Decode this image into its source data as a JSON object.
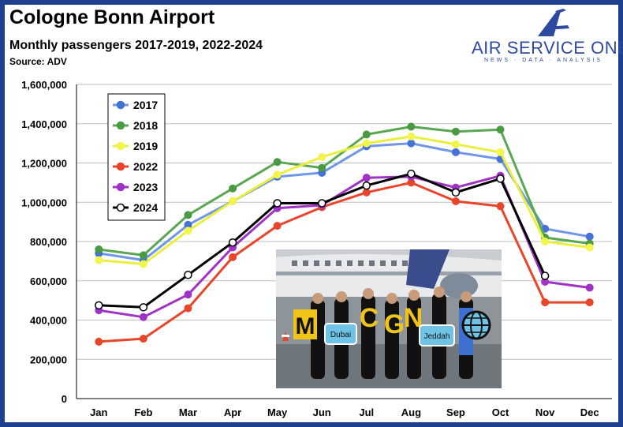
{
  "header": {
    "title": "Cologne Bonn Airport",
    "subtitle": "Monthly passengers 2017-2019, 2022-2024",
    "source": "Source: ADV"
  },
  "logo": {
    "name": "AIR SERVICE ONE",
    "tagline": "NEWS · DATA · ANALYSIS",
    "icon": "stylized-a-plane-icon"
  },
  "photo": {
    "signs": [
      "M",
      "C",
      "G",
      "N",
      "Dubai",
      "Jeddah"
    ],
    "description_icon": "globe-icon"
  },
  "chart_data": {
    "type": "line",
    "categories": [
      "Jan",
      "Feb",
      "Mar",
      "Apr",
      "May",
      "Jun",
      "Jul",
      "Aug",
      "Sep",
      "Oct",
      "Nov",
      "Dec"
    ],
    "ylim": [
      0,
      1600000
    ],
    "yticks": [
      0,
      200000,
      400000,
      600000,
      800000,
      1000000,
      1200000,
      1400000,
      1600000
    ],
    "ytick_labels": [
      "0",
      "200,000",
      "400,000",
      "600,000",
      "800,000",
      "1,000,000",
      "1,200,000",
      "1,400,000",
      "1,600,000"
    ],
    "grid": true,
    "legend_position": "top-left",
    "series": [
      {
        "name": "2017",
        "color": "#6f96e8",
        "marker_fill": "#4472d6",
        "values": [
          740000,
          705000,
          885000,
          1005000,
          1130000,
          1150000,
          1285000,
          1300000,
          1255000,
          1220000,
          865000,
          825000
        ]
      },
      {
        "name": "2018",
        "color": "#5aa752",
        "marker_fill": "#4a9a44",
        "values": [
          760000,
          730000,
          935000,
          1070000,
          1205000,
          1175000,
          1345000,
          1385000,
          1360000,
          1370000,
          820000,
          790000
        ]
      },
      {
        "name": "2019",
        "color": "#e9ef3c",
        "marker_fill": "#f2f64a",
        "values": [
          705000,
          685000,
          855000,
          1005000,
          1140000,
          1230000,
          1300000,
          1335000,
          1295000,
          1255000,
          800000,
          770000
        ]
      },
      {
        "name": "2022",
        "color": "#e8452a",
        "marker_fill": "#e8452a",
        "values": [
          290000,
          305000,
          460000,
          720000,
          880000,
          975000,
          1050000,
          1100000,
          1005000,
          980000,
          490000,
          490000
        ]
      },
      {
        "name": "2023",
        "color": "#a132c6",
        "marker_fill": "#a132c6",
        "values": [
          450000,
          415000,
          530000,
          770000,
          970000,
          985000,
          1125000,
          1130000,
          1075000,
          1135000,
          595000,
          565000
        ]
      },
      {
        "name": "2024",
        "color": "#000000",
        "marker_fill": "#ffffff",
        "values": [
          475000,
          465000,
          630000,
          795000,
          995000,
          995000,
          1085000,
          1145000,
          1050000,
          1120000,
          625000,
          null
        ]
      }
    ]
  }
}
